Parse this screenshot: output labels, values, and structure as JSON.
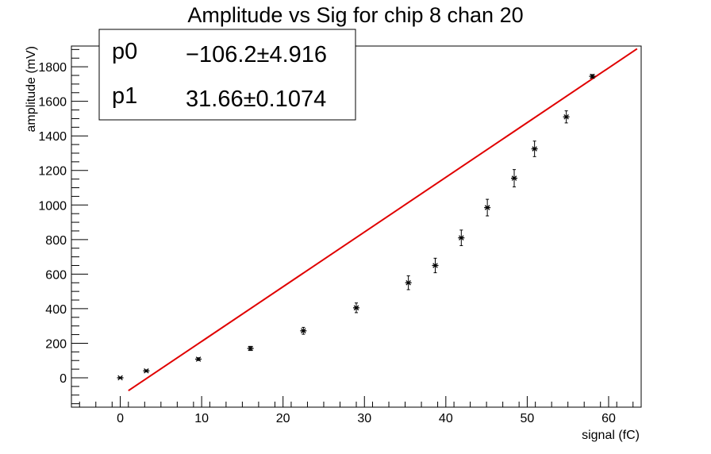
{
  "chart_data": {
    "type": "scatter",
    "title": "Amplitude vs Sig for chip 8 chan 20",
    "xlabel": "signal (fC)",
    "ylabel": "amplitude (mV)",
    "xlim": [
      -6,
      64
    ],
    "ylim": [
      -170,
      1920
    ],
    "x_ticks": [
      0,
      10,
      20,
      30,
      40,
      50,
      60
    ],
    "y_ticks": [
      0,
      200,
      400,
      600,
      800,
      1000,
      1200,
      1400,
      1600,
      1800
    ],
    "grid": false,
    "series": [
      {
        "marker": "asterisk",
        "color": "#000000",
        "points": [
          {
            "x": 0.0,
            "y": 0,
            "err": 4
          },
          {
            "x": 3.2,
            "y": 40,
            "err": 6
          },
          {
            "x": 9.6,
            "y": 108,
            "err": 8
          },
          {
            "x": 16.0,
            "y": 170,
            "err": 12
          },
          {
            "x": 22.5,
            "y": 272,
            "err": 20
          },
          {
            "x": 29.0,
            "y": 405,
            "err": 28
          },
          {
            "x": 35.4,
            "y": 550,
            "err": 40
          },
          {
            "x": 38.7,
            "y": 650,
            "err": 42
          },
          {
            "x": 41.9,
            "y": 810,
            "err": 45
          },
          {
            "x": 45.1,
            "y": 985,
            "err": 48
          },
          {
            "x": 48.4,
            "y": 1155,
            "err": 50
          },
          {
            "x": 50.9,
            "y": 1325,
            "err": 45
          },
          {
            "x": 54.8,
            "y": 1510,
            "err": 35
          },
          {
            "x": 58.0,
            "y": 1745,
            "err": 10
          }
        ]
      }
    ],
    "fit": {
      "type": "linear",
      "color": "#e00000",
      "p0": -106.2,
      "p1": 31.66,
      "x_range": [
        1.0,
        63.5
      ]
    },
    "stats_box": {
      "placement": "top-left",
      "rows": [
        {
          "name": "p0",
          "value": "−106.2",
          "pm": "±",
          "error": "4.916"
        },
        {
          "name": "p1",
          "value": "31.66",
          "pm": "±",
          "error": "0.1074"
        }
      ]
    }
  }
}
